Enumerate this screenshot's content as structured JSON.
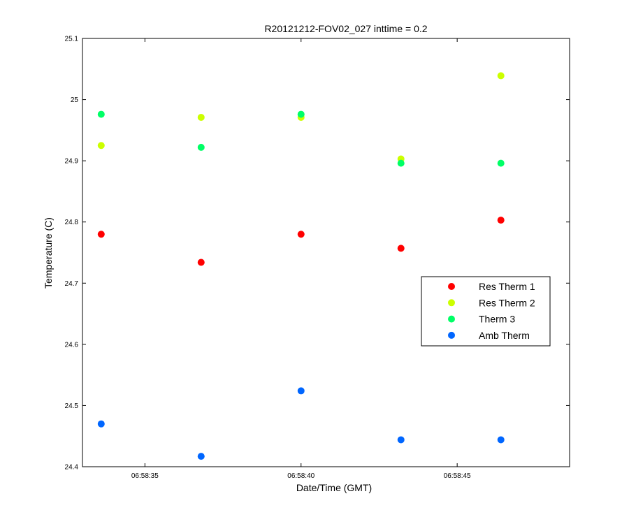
{
  "chart_data": {
    "type": "scatter",
    "title": "R20121212-FOV02_027 inttime = 0.2",
    "xlabel": "Date/Time (GMT)",
    "ylabel": "Temperature (C)",
    "x_unit": "seconds after 06:58",
    "xlim": [
      33.0,
      48.6
    ],
    "ylim": [
      24.4,
      25.1
    ],
    "x_ticks": [
      35,
      40,
      45
    ],
    "x_tick_labels": [
      "06:58:35",
      "06:58:40",
      "06:58:45"
    ],
    "y_ticks": [
      24.4,
      24.5,
      24.6,
      24.7,
      24.8,
      24.9,
      25.0,
      25.1
    ],
    "y_tick_labels": [
      "24.4",
      "24.5",
      "24.6",
      "24.7",
      "24.8",
      "24.9",
      "25",
      "25.1"
    ],
    "grid": false,
    "legend_position": "right",
    "x": [
      33.6,
      36.8,
      40.0,
      43.2,
      46.4
    ],
    "series": [
      {
        "name": "Res Therm 1",
        "color": "#ff0000",
        "values": [
          24.78,
          24.734,
          24.78,
          24.757,
          24.803
        ]
      },
      {
        "name": "Res Therm 2",
        "color": "#ccff00",
        "values": [
          24.925,
          24.971,
          24.971,
          24.903,
          25.039
        ]
      },
      {
        "name": "Therm 3",
        "color": "#00ff66",
        "values": [
          24.976,
          24.922,
          24.976,
          24.896,
          24.896
        ]
      },
      {
        "name": "Amb Therm",
        "color": "#0066ff",
        "values": [
          24.47,
          24.417,
          24.524,
          24.444,
          24.444
        ]
      }
    ]
  }
}
